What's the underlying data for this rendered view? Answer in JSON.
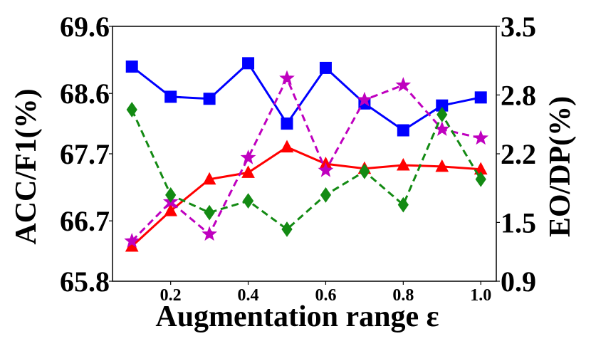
{
  "chart_data": {
    "type": "line",
    "xlabel": "Augmentation range ε",
    "ylabel_left": "ACC/F1(%)",
    "ylabel_right": "EO/DP(%)",
    "x": [
      0.1,
      0.2,
      0.3,
      0.4,
      0.5,
      0.6,
      0.7,
      0.8,
      0.9,
      1.0
    ],
    "xlim": [
      0.05,
      1.04
    ],
    "x_ticks": [
      "0.2",
      "0.4",
      "0.6",
      "0.8",
      "1.0"
    ],
    "x_tick_values": [
      0.2,
      0.4,
      0.6,
      0.8,
      1.0
    ],
    "ylim_left": [
      65.8,
      69.6
    ],
    "yticks_left": [
      "65.8",
      "66.7",
      "67.7",
      "68.6",
      "69.6"
    ],
    "ytick_values_left": [
      65.8,
      66.7,
      67.7,
      68.6,
      69.6
    ],
    "ylim_right": [
      0.9,
      3.5
    ],
    "yticks_right": [
      "0.9",
      "1.5",
      "2.2",
      "2.8",
      "3.5"
    ],
    "ytick_values_right": [
      0.9,
      1.5,
      2.2,
      2.8,
      3.5
    ],
    "grid": false,
    "series": [
      {
        "axis": "left",
        "color": "#0000ff",
        "marker": "square",
        "dash": "solid",
        "values": [
          69.0,
          68.55,
          68.52,
          69.05,
          68.15,
          68.98,
          68.45,
          68.05,
          68.42,
          68.54
        ]
      },
      {
        "axis": "left",
        "color": "#ff0000",
        "marker": "triangle",
        "dash": "solid",
        "values": [
          66.32,
          66.85,
          67.32,
          67.42,
          67.8,
          67.55,
          67.48,
          67.53,
          67.51,
          67.47
        ]
      },
      {
        "axis": "right",
        "color": "#bf00bf",
        "marker": "star",
        "dash": "dashed",
        "values": [
          1.31,
          1.71,
          1.38,
          2.16,
          2.97,
          2.03,
          2.75,
          2.9,
          2.45,
          2.36
        ]
      },
      {
        "axis": "right",
        "color": "#138a13",
        "marker": "diamond",
        "dash": "dashed",
        "values": [
          2.65,
          1.78,
          1.6,
          1.72,
          1.43,
          1.78,
          2.02,
          1.68,
          2.6,
          1.94
        ]
      }
    ]
  }
}
